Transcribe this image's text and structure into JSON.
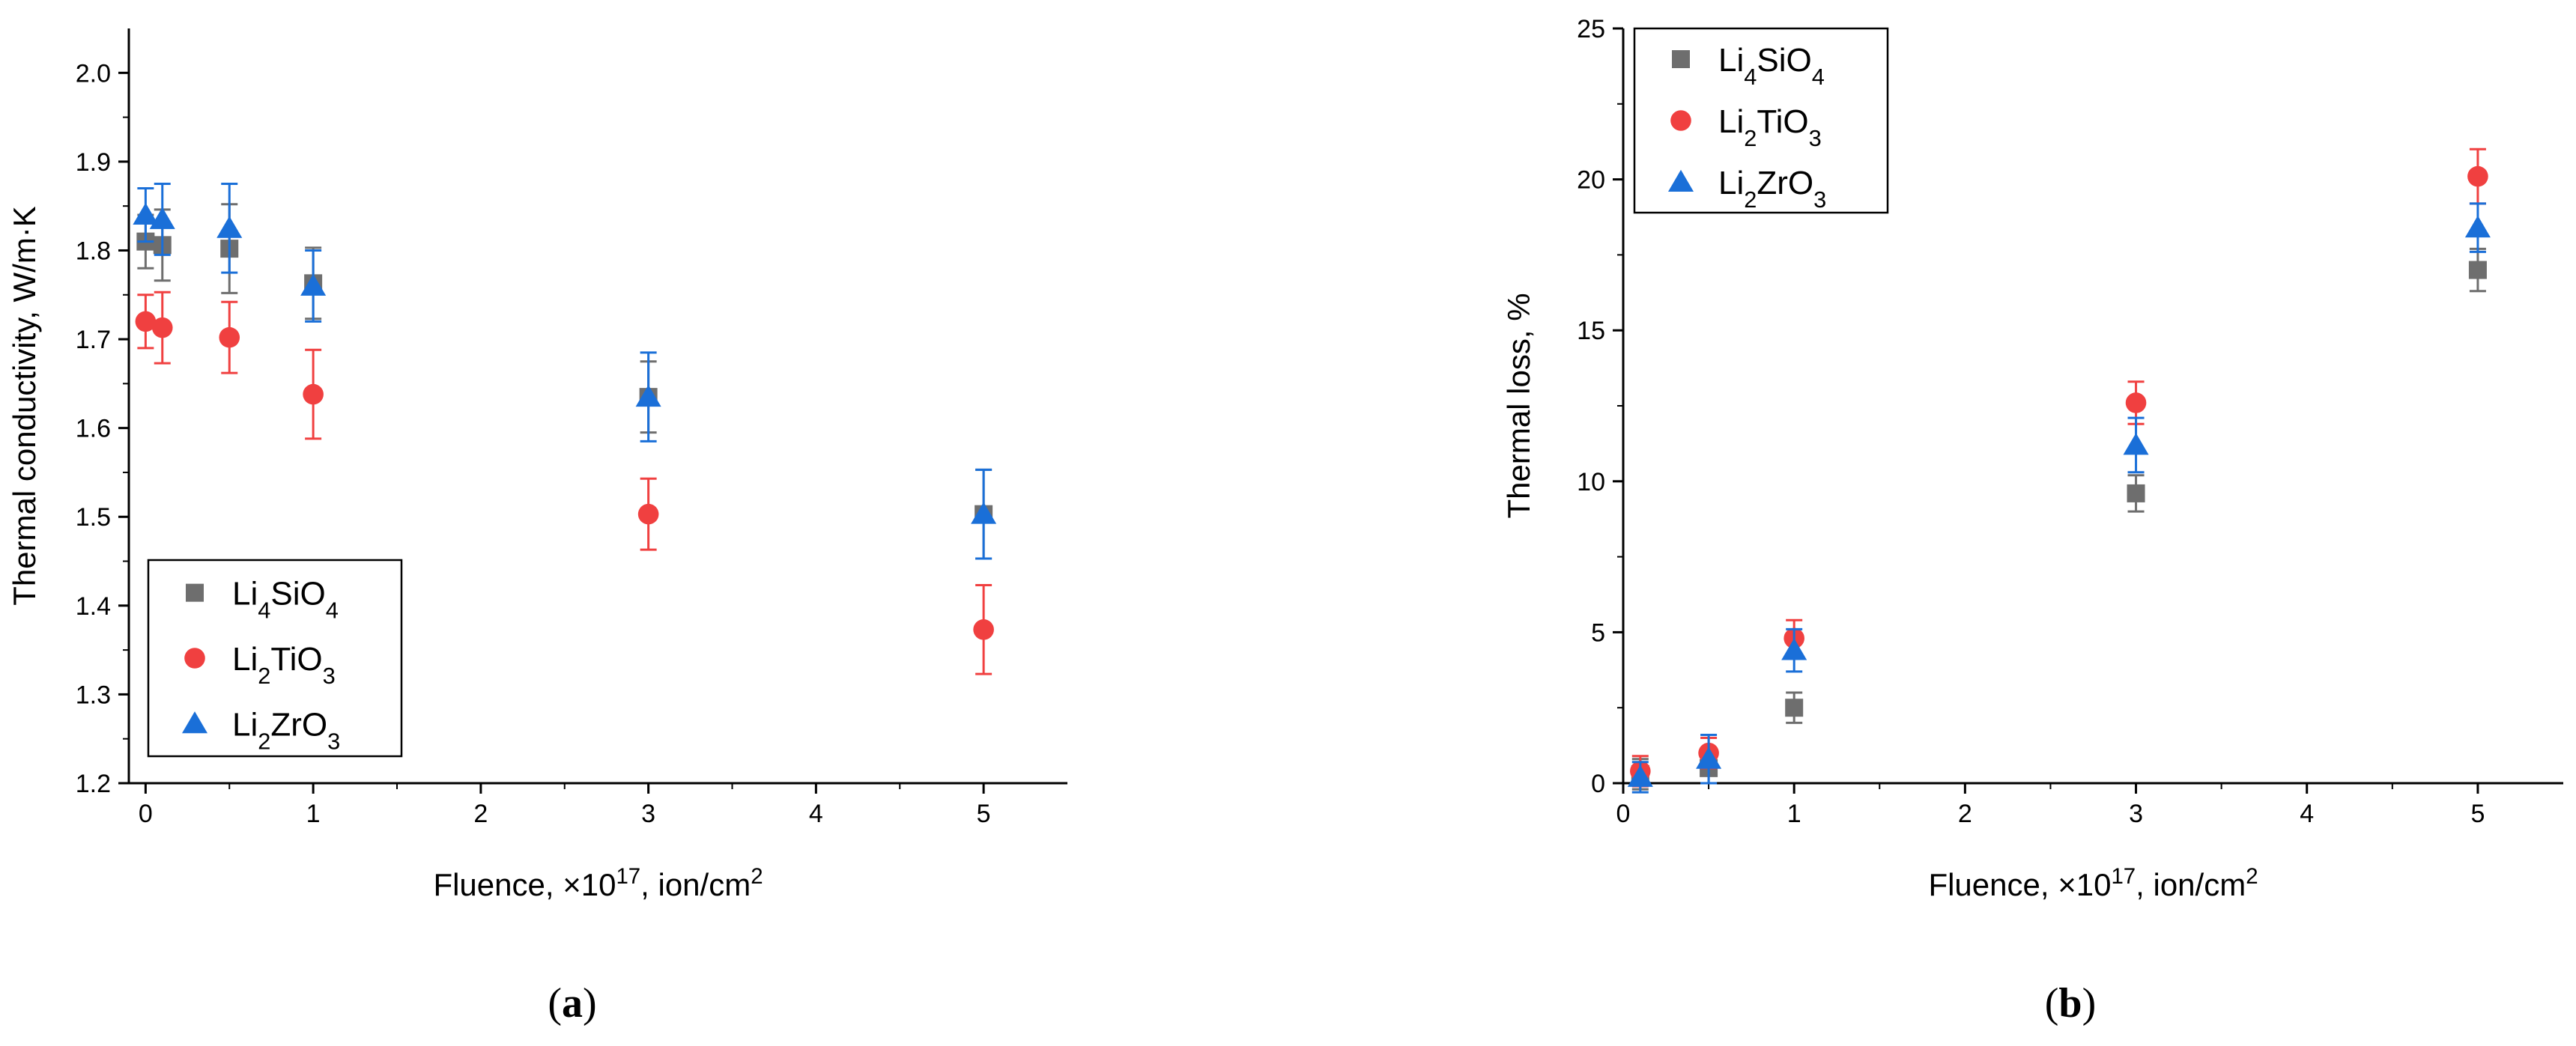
{
  "figure": {
    "panels": [
      {
        "label_open": "(",
        "label_letter": "a",
        "label_close": ")"
      },
      {
        "label_open": "(",
        "label_letter": "b",
        "label_close": ")"
      }
    ]
  },
  "chart_data": [
    {
      "type": "scatter",
      "title": "",
      "xlabel": {
        "text": "Fluence, ×10",
        "sup": "17",
        "rest": ", ion/cm",
        "sup2": "2"
      },
      "ylabel": "Thermal conductivity, W/m·K",
      "xlim": [
        -0.1,
        5.5
      ],
      "ylim": [
        1.2,
        2.05
      ],
      "x_ticks": [
        0,
        1,
        2,
        3,
        4,
        5
      ],
      "x_tick_labels": [
        "0",
        "1",
        "2",
        "3",
        "4",
        "5"
      ],
      "y_ticks": [
        1.2,
        1.3,
        1.4,
        1.5,
        1.6,
        1.7,
        1.8,
        1.9,
        2.0
      ],
      "y_tick_labels": [
        "1.2",
        "1.3",
        "1.4",
        "1.5",
        "1.6",
        "1.7",
        "1.8",
        "1.9",
        "2.0"
      ],
      "grid": false,
      "legend_position": "bottom-left",
      "series": [
        {
          "name": "Li4SiO4",
          "name_parts": [
            [
              "Li",
              ""
            ],
            [
              "4",
              "sub"
            ],
            [
              "SiO",
              ""
            ],
            [
              "4",
              "sub"
            ]
          ],
          "marker": "square",
          "color": "#6e6e6e",
          "points": [
            {
              "x": 0,
              "y": 1.81,
              "err": 0.03
            },
            {
              "x": 0.1,
              "y": 1.806,
              "err": 0.04
            },
            {
              "x": 0.5,
              "y": 1.802,
              "err": 0.05
            },
            {
              "x": 1,
              "y": 1.763,
              "err": 0.04
            },
            {
              "x": 3,
              "y": 1.635,
              "err": 0.04
            },
            {
              "x": 5,
              "y": 1.503,
              "err": 0.05
            }
          ]
        },
        {
          "name": "Li2TiO3",
          "name_parts": [
            [
              "Li",
              ""
            ],
            [
              "2",
              "sub"
            ],
            [
              "TiO",
              ""
            ],
            [
              "3",
              "sub"
            ]
          ],
          "marker": "circle",
          "color": "#f04040",
          "points": [
            {
              "x": 0,
              "y": 1.72,
              "err": 0.03
            },
            {
              "x": 0.1,
              "y": 1.713,
              "err": 0.04
            },
            {
              "x": 0.5,
              "y": 1.702,
              "err": 0.04
            },
            {
              "x": 1,
              "y": 1.638,
              "err": 0.05
            },
            {
              "x": 3,
              "y": 1.503,
              "err": 0.04
            },
            {
              "x": 5,
              "y": 1.373,
              "err": 0.05
            }
          ]
        },
        {
          "name": "Li2ZrO3",
          "name_parts": [
            [
              "Li",
              ""
            ],
            [
              "2",
              "sub"
            ],
            [
              "ZrO",
              ""
            ],
            [
              "3",
              "sub"
            ]
          ],
          "marker": "triangle",
          "color": "#1a6fd8",
          "points": [
            {
              "x": 0,
              "y": 1.84,
              "err": 0.03
            },
            {
              "x": 0.1,
              "y": 1.835,
              "err": 0.04
            },
            {
              "x": 0.5,
              "y": 1.825,
              "err": 0.05
            },
            {
              "x": 1,
              "y": 1.76,
              "err": 0.04
            },
            {
              "x": 3,
              "y": 1.635,
              "err": 0.05
            },
            {
              "x": 5,
              "y": 1.503,
              "err": 0.05
            }
          ]
        }
      ]
    },
    {
      "type": "scatter",
      "title": "",
      "xlabel": {
        "text": "Fluence, ×10",
        "sup": "17",
        "rest": ", ion/cm",
        "sup2": "2"
      },
      "ylabel": "Thermal loss, %",
      "xlim": [
        0,
        5.5
      ],
      "ylim": [
        0,
        25
      ],
      "x_ticks": [
        0,
        1,
        2,
        3,
        4,
        5
      ],
      "x_tick_labels": [
        "0",
        "1",
        "2",
        "3",
        "4",
        "5"
      ],
      "y_ticks": [
        0,
        5,
        10,
        15,
        20,
        25
      ],
      "y_tick_labels": [
        "0",
        "5",
        "10",
        "15",
        "20",
        "25"
      ],
      "grid": false,
      "legend_position": "top-left",
      "series": [
        {
          "name": "Li4SiO4",
          "name_parts": [
            [
              "Li",
              ""
            ],
            [
              "4",
              "sub"
            ],
            [
              "SiO",
              ""
            ],
            [
              "4",
              "sub"
            ]
          ],
          "marker": "square",
          "color": "#6e6e6e",
          "points": [
            {
              "x": 0.1,
              "y": 0.3,
              "err": 0.5
            },
            {
              "x": 0.5,
              "y": 0.5,
              "err": 0.5
            },
            {
              "x": 1,
              "y": 2.5,
              "err": 0.5
            },
            {
              "x": 3,
              "y": 9.6,
              "err": 0.6
            },
            {
              "x": 5,
              "y": 17.0,
              "err": 0.7
            }
          ]
        },
        {
          "name": "Li2TiO3",
          "name_parts": [
            [
              "Li",
              ""
            ],
            [
              "2",
              "sub"
            ],
            [
              "TiO",
              ""
            ],
            [
              "3",
              "sub"
            ]
          ],
          "marker": "circle",
          "color": "#f04040",
          "points": [
            {
              "x": 0.1,
              "y": 0.4,
              "err": 0.5
            },
            {
              "x": 0.5,
              "y": 1.0,
              "err": 0.5
            },
            {
              "x": 1,
              "y": 4.8,
              "err": 0.6
            },
            {
              "x": 3,
              "y": 12.6,
              "err": 0.7
            },
            {
              "x": 5,
              "y": 20.1,
              "err": 0.9
            }
          ]
        },
        {
          "name": "Li2ZrO3",
          "name_parts": [
            [
              "Li",
              ""
            ],
            [
              "2",
              "sub"
            ],
            [
              "ZrO",
              ""
            ],
            [
              "3",
              "sub"
            ]
          ],
          "marker": "triangle",
          "color": "#1a6fd8",
          "points": [
            {
              "x": 0.1,
              "y": 0.2,
              "err": 0.5
            },
            {
              "x": 0.5,
              "y": 0.8,
              "err": 0.8
            },
            {
              "x": 1,
              "y": 4.4,
              "err": 0.7
            },
            {
              "x": 3,
              "y": 11.2,
              "err": 0.9
            },
            {
              "x": 5,
              "y": 18.4,
              "err": 0.8
            }
          ]
        }
      ]
    }
  ]
}
